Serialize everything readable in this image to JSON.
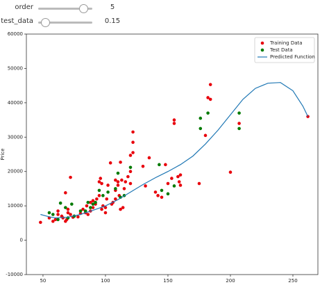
{
  "controls": [
    {
      "label": "order",
      "value": 5
    },
    {
      "label": "test_data",
      "value": 0.15
    }
  ],
  "chart_data": {
    "type": "scatter",
    "ylabel": "Price",
    "xlim": [
      36.7,
      270
    ],
    "xticks": [
      50,
      100,
      150,
      200,
      250
    ],
    "ylim": [
      -10000,
      60000
    ],
    "yticks": [
      -10000,
      0,
      10000,
      20000,
      30000,
      40000,
      50000,
      60000
    ],
    "legend": "upper right",
    "series": [
      {
        "name": "Training Data",
        "type": "scatter",
        "color": "#e8000b",
        "x": [
          48,
          55,
          58,
          60,
          62,
          62,
          65,
          66,
          68,
          68,
          69,
          70,
          70,
          72,
          72,
          74,
          75,
          78,
          80,
          82,
          84,
          85,
          86,
          88,
          88,
          90,
          90,
          92,
          93,
          95,
          95,
          96,
          97,
          97,
          98,
          100,
          100,
          101,
          102,
          104,
          105,
          106,
          108,
          108,
          108,
          110,
          110,
          111,
          112,
          112,
          113,
          114,
          115,
          116,
          118,
          120,
          120,
          120,
          122,
          122,
          122,
          130,
          132,
          135,
          140,
          142,
          145,
          148,
          150,
          153,
          155,
          155,
          158,
          159,
          160,
          160,
          175,
          180,
          182,
          184,
          184,
          200,
          207,
          262
        ],
        "values": [
          5200,
          6500,
          5500,
          6000,
          7500,
          8500,
          7000,
          6500,
          13800,
          5500,
          6000,
          8000,
          9000,
          18300,
          7500,
          6700,
          7000,
          6800,
          7800,
          9000,
          8000,
          10000,
          7500,
          8500,
          11000,
          9500,
          11500,
          10500,
          12000,
          13000,
          17000,
          18000,
          16500,
          9000,
          10000,
          8000,
          9500,
          12000,
          16000,
          22500,
          10500,
          11000,
          14500,
          17500,
          12000,
          16000,
          17000,
          13000,
          9000,
          22700,
          17500,
          9500,
          15000,
          17000,
          18500,
          20000,
          24700,
          16500,
          25500,
          28500,
          31500,
          21500,
          15800,
          24000,
          14000,
          13000,
          12500,
          22000,
          16500,
          18000,
          35000,
          34000,
          18500,
          17000,
          19000,
          16000,
          16500,
          30500,
          41500,
          41000,
          45300,
          19800,
          34000,
          36000
        ]
      },
      {
        "name": "Test Data",
        "type": "scatter",
        "color": "#007a00",
        "x": [
          55,
          58,
          62,
          64,
          68,
          70,
          73,
          75,
          80,
          84,
          86,
          88,
          90,
          92,
          95,
          98,
          102,
          108,
          110,
          112,
          115,
          120,
          143,
          145,
          150,
          155,
          176,
          176,
          182,
          207,
          207
        ],
        "values": [
          8000,
          7500,
          6000,
          10800,
          9500,
          6500,
          10500,
          7000,
          8500,
          8500,
          11000,
          9500,
          10500,
          11000,
          14500,
          13000,
          14000,
          15000,
          19500,
          12500,
          13000,
          21200,
          22000,
          14500,
          13500,
          15800,
          35500,
          32500,
          37000,
          37000,
          32500
        ]
      },
      {
        "name": "Predicted Function",
        "type": "line",
        "color": "#1f77b4",
        "x": [
          48,
          55,
          60,
          70,
          80,
          90,
          100,
          110,
          120,
          130,
          140,
          150,
          160,
          170,
          180,
          190,
          200,
          210,
          220,
          230,
          240,
          250,
          258,
          262
        ],
        "values": [
          7500,
          6800,
          6500,
          6700,
          7500,
          8700,
          10000,
          11800,
          14000,
          16200,
          18200,
          20000,
          22000,
          24500,
          28000,
          32000,
          36500,
          41000,
          44200,
          45700,
          45900,
          43500,
          39000,
          36000
        ]
      }
    ]
  }
}
